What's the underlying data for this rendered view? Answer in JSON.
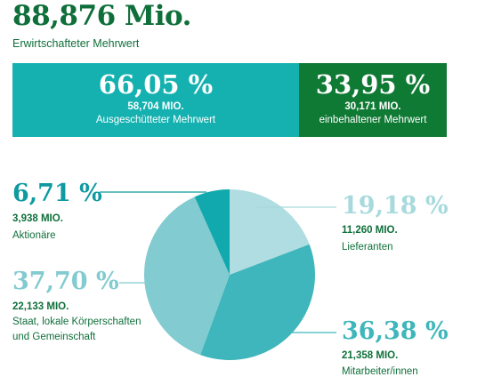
{
  "headline": {
    "value": "88,876 Mio.",
    "label": "Erwirtschafteter Mehrwert"
  },
  "split": [
    {
      "percent": "66,05 %",
      "amount": "58,704 MIO.",
      "label": "Ausgeschütteter Mehrwert",
      "color": "#14b1b0"
    },
    {
      "percent": "33,95 %",
      "amount": "30,171 MIO.",
      "label": "einbehaltener Mehrwert",
      "color": "#0f7a34"
    }
  ],
  "chart_data": {
    "type": "pie",
    "title": "",
    "slices": [
      {
        "name": "Lieferanten",
        "value": 19.18,
        "percent_label": "19,18 %",
        "amount": "11,260 MIO.",
        "color": "#b0dde1",
        "label_color": "#a8d9dd"
      },
      {
        "name": "Mitarbeiter/innen",
        "value": 36.38,
        "percent_label": "36,38 %",
        "amount": "21,358 MIO.",
        "color": "#3fb6bb",
        "label_color": "#3fb6bb"
      },
      {
        "name": "Staat, lokale Körperschaften und Gemeinschaft",
        "line1": "Staat, lokale Körperschaften",
        "line2": "und Gemeinschaft",
        "value": 37.7,
        "percent_label": "37,70 %",
        "amount": "22,133 MIO.",
        "color": "#82cbd0",
        "label_color": "#82cbd0"
      },
      {
        "name": "Aktionäre",
        "value": 6.71,
        "percent_label": "6,71 %",
        "amount": "3,938 MIO.",
        "color": "#11a9ae",
        "label_color": "#0f9aa0"
      }
    ]
  }
}
